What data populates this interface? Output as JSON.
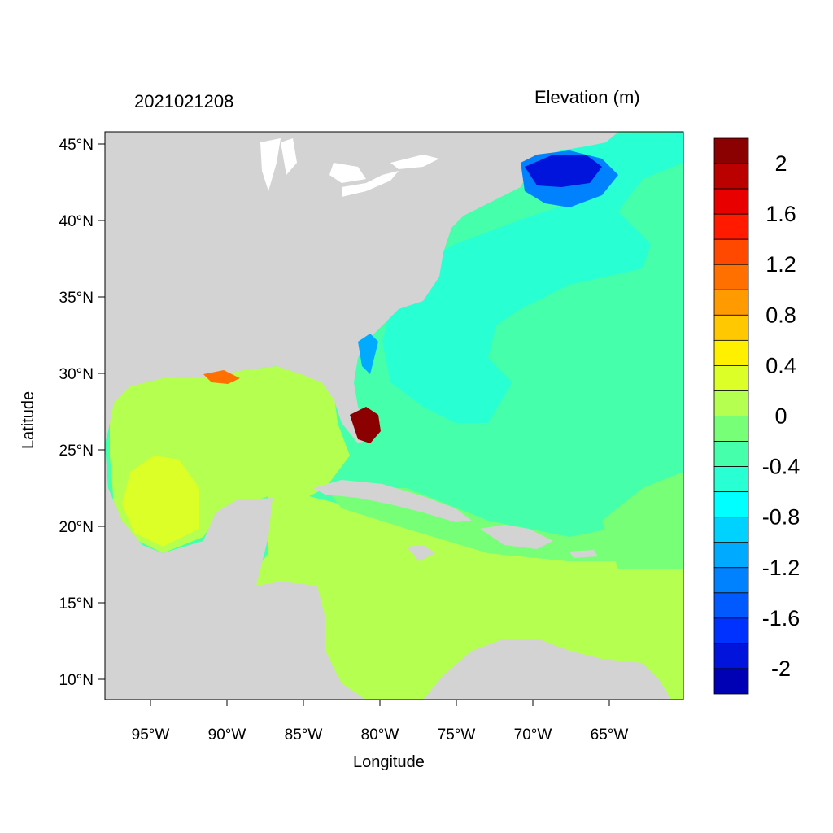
{
  "title_left": "2021021208",
  "title_right": "Elevation (m)",
  "x_axis_label": "Longitude",
  "y_axis_label": "Latitude",
  "lon_ticks": [
    {
      "value": -95,
      "label": "95°W"
    },
    {
      "value": -90,
      "label": "90°W"
    },
    {
      "value": -85,
      "label": "85°W"
    },
    {
      "value": -80,
      "label": "80°W"
    },
    {
      "value": -75,
      "label": "75°W"
    },
    {
      "value": -70,
      "label": "70°W"
    },
    {
      "value": -65,
      "label": "65°W"
    }
  ],
  "lat_ticks": [
    {
      "value": 45,
      "label": "45°N"
    },
    {
      "value": 40,
      "label": "40°N"
    },
    {
      "value": 35,
      "label": "35°N"
    },
    {
      "value": 30,
      "label": "30°N"
    },
    {
      "value": 25,
      "label": "25°N"
    },
    {
      "value": 20,
      "label": "20°N"
    },
    {
      "value": 15,
      "label": "15°N"
    },
    {
      "value": 10,
      "label": "10°N"
    }
  ],
  "colorbar": {
    "labels": [
      "2",
      "1.6",
      "1.2",
      "0.8",
      "0.4",
      "0",
      "-0.4",
      "-0.8",
      "-1.2",
      "-1.6",
      "-2"
    ],
    "colors": [
      "#8b0000",
      "#bb0000",
      "#e80000",
      "#ff1a00",
      "#ff4800",
      "#ff7000",
      "#ff9a00",
      "#ffc800",
      "#fff000",
      "#dcff28",
      "#b4ff50",
      "#78ff78",
      "#46ffaa",
      "#28ffd2",
      "#00ffff",
      "#00d2ff",
      "#00aaff",
      "#0082ff",
      "#005aff",
      "#0032ff",
      "#0014dc",
      "#0000b4"
    ]
  },
  "colors": {
    "land": "#d3d3d3",
    "water_lake": "#ffffff",
    "ocean_neg04": "#28ffd2",
    "ocean_neg02": "#46ffaa",
    "gulf_zero": "#b4ff50",
    "gulf_pos": "#dcff28",
    "nova_scotia_low": "#0014dc",
    "florida_high": "#8b0000"
  }
}
